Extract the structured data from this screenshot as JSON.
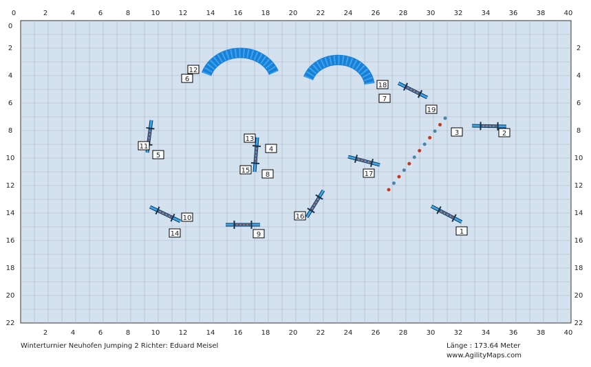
{
  "axes": {
    "top": [
      0,
      2,
      4,
      6,
      8,
      10,
      12,
      14,
      16,
      18,
      20,
      22,
      24,
      26,
      28,
      30,
      32,
      34,
      36,
      38,
      40
    ],
    "bottom": [
      2,
      4,
      6,
      8,
      10,
      12,
      14,
      16,
      18,
      20,
      22,
      24,
      26,
      28,
      30,
      32,
      34,
      36,
      38,
      40
    ],
    "left": [
      0,
      2,
      4,
      6,
      8,
      10,
      12,
      14,
      16,
      18,
      20,
      22
    ],
    "right": [
      2,
      4,
      6,
      8,
      10,
      12,
      14,
      16,
      18,
      20,
      22
    ]
  },
  "obstacle_numbers": [
    "12",
    "6",
    "18",
    "7",
    "19",
    "3",
    "2",
    "13",
    "4",
    "11",
    "5",
    "15",
    "8",
    "17",
    "10",
    "14",
    "16",
    "9",
    "1"
  ],
  "footer": {
    "event": "Winterturnier Neuhofen  Jumping 2 Richter: Eduard Meisel",
    "length": "Länge : 173.64 Meter",
    "website": "www.AgilityMaps.com"
  }
}
